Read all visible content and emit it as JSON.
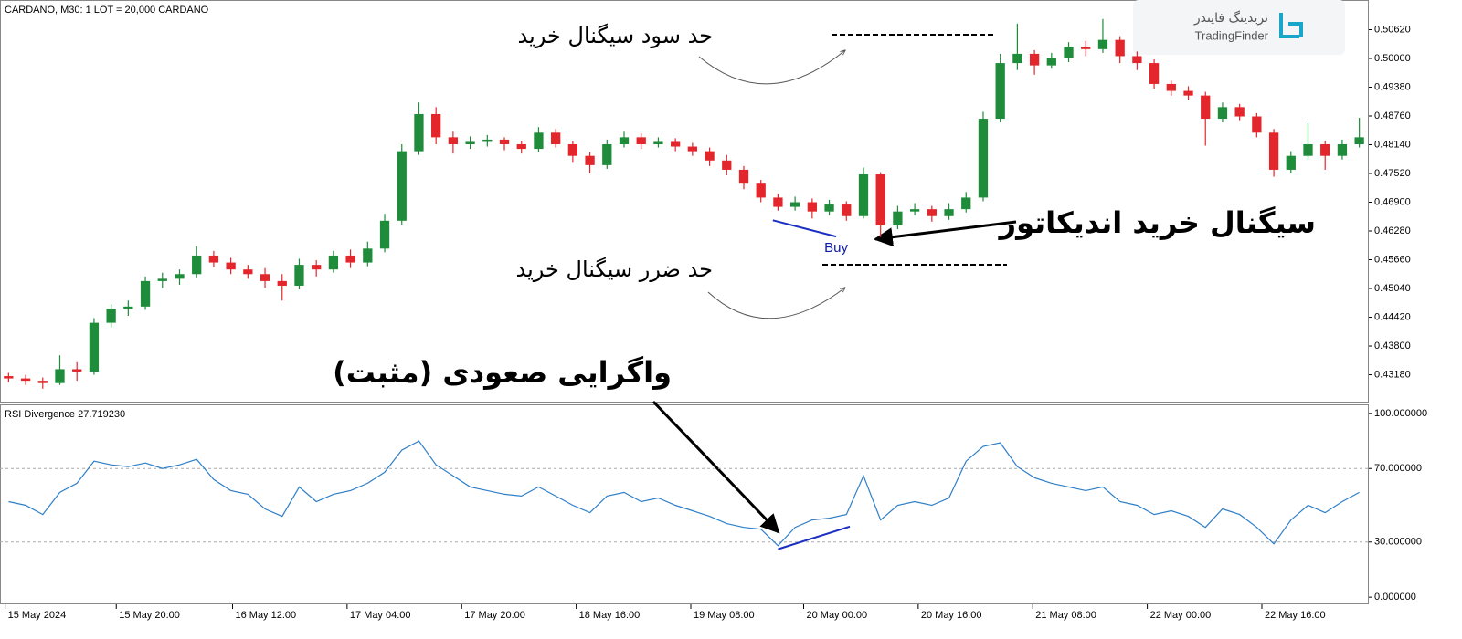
{
  "header": {
    "symbol": "CARDANO, M30:  1 LOT = 20,000 CARDANO"
  },
  "logo": {
    "name_fa": "تریدینگ فایندر",
    "name_en": "TradingFinder"
  },
  "annotations": {
    "take_profit": "حد سود سیگنال خرید",
    "stop_loss": "حد ضرر سیگنال خرید",
    "buy_signal": "سیگنال خرید اندیکاتور",
    "divergence": "واگرایی صعودی (مثبت)"
  },
  "chart_data": [
    {
      "type": "candlestick",
      "bull_color": "#1e8c3a",
      "bear_color": "#e3262c",
      "signal_label": "Buy",
      "signal_color": "#0a1aa8",
      "xlim": [
        -0.5,
        79.5
      ],
      "ylim": [
        0.426,
        0.5122
      ],
      "yticks": [
        {
          "value": 0.5062,
          "label": "0.50620"
        },
        {
          "value": 0.5,
          "label": "0.50000"
        },
        {
          "value": 0.4938,
          "label": "0.49380"
        },
        {
          "value": 0.4876,
          "label": "0.48760"
        },
        {
          "value": 0.4814,
          "label": "0.48140"
        },
        {
          "value": 0.4752,
          "label": "0.47520"
        },
        {
          "value": 0.469,
          "label": "0.46900"
        },
        {
          "value": 0.4628,
          "label": "0.46280"
        },
        {
          "value": 0.4566,
          "label": "0.45660"
        },
        {
          "value": 0.4504,
          "label": "0.45040"
        },
        {
          "value": 0.4442,
          "label": "0.44420"
        },
        {
          "value": 0.438,
          "label": "0.43800"
        },
        {
          "value": 0.4318,
          "label": "0.43180"
        }
      ],
      "divergence_line": {
        "x": [
          44.7,
          48.4
        ],
        "values": [
          0.4651,
          0.4616
        ],
        "color": "#1a2fc0"
      },
      "ohlc": [
        [
          0.4315,
          0.4322,
          0.4302,
          0.431
        ],
        [
          0.431,
          0.4318,
          0.4296,
          0.4305
        ],
        [
          0.4305,
          0.4312,
          0.4288,
          0.43
        ],
        [
          0.43,
          0.436,
          0.4296,
          0.433
        ],
        [
          0.433,
          0.4345,
          0.4305,
          0.4325
        ],
        [
          0.4325,
          0.444,
          0.4318,
          0.443
        ],
        [
          0.443,
          0.447,
          0.442,
          0.446
        ],
        [
          0.446,
          0.4478,
          0.4445,
          0.4465
        ],
        [
          0.4465,
          0.453,
          0.4458,
          0.452
        ],
        [
          0.452,
          0.4538,
          0.4505,
          0.4525
        ],
        [
          0.4525,
          0.4545,
          0.4512,
          0.4535
        ],
        [
          0.4535,
          0.4595,
          0.4528,
          0.4575
        ],
        [
          0.4575,
          0.4585,
          0.455,
          0.456
        ],
        [
          0.456,
          0.457,
          0.4535,
          0.4545
        ],
        [
          0.4545,
          0.4555,
          0.4525,
          0.4535
        ],
        [
          0.4535,
          0.4548,
          0.4505,
          0.452
        ],
        [
          0.452,
          0.4535,
          0.4478,
          0.451
        ],
        [
          0.451,
          0.4568,
          0.4502,
          0.4555
        ],
        [
          0.4555,
          0.4565,
          0.453,
          0.4545
        ],
        [
          0.4545,
          0.4585,
          0.4538,
          0.4575
        ],
        [
          0.4575,
          0.4588,
          0.4548,
          0.456
        ],
        [
          0.456,
          0.4605,
          0.4552,
          0.459
        ],
        [
          0.459,
          0.4665,
          0.4582,
          0.465
        ],
        [
          0.465,
          0.4815,
          0.4642,
          0.48
        ],
        [
          0.48,
          0.4905,
          0.4792,
          0.488
        ],
        [
          0.488,
          0.4895,
          0.4815,
          0.483
        ],
        [
          0.483,
          0.4842,
          0.4795,
          0.4815
        ],
        [
          0.4815,
          0.4832,
          0.4805,
          0.482
        ],
        [
          0.482,
          0.4835,
          0.481,
          0.4825
        ],
        [
          0.4825,
          0.483,
          0.4802,
          0.4815
        ],
        [
          0.4815,
          0.4822,
          0.4795,
          0.4805
        ],
        [
          0.4805,
          0.4852,
          0.4798,
          0.484
        ],
        [
          0.484,
          0.4848,
          0.4808,
          0.4815
        ],
        [
          0.4815,
          0.4822,
          0.4775,
          0.479
        ],
        [
          0.479,
          0.4798,
          0.4752,
          0.477
        ],
        [
          0.477,
          0.4825,
          0.4762,
          0.4815
        ],
        [
          0.4815,
          0.4842,
          0.4808,
          0.483
        ],
        [
          0.483,
          0.4838,
          0.4805,
          0.4815
        ],
        [
          0.4815,
          0.483,
          0.4808,
          0.482
        ],
        [
          0.482,
          0.4828,
          0.48,
          0.481
        ],
        [
          0.481,
          0.4818,
          0.479,
          0.48
        ],
        [
          0.48,
          0.4808,
          0.4768,
          0.478
        ],
        [
          0.478,
          0.4792,
          0.4748,
          0.476
        ],
        [
          0.476,
          0.4768,
          0.4718,
          0.473
        ],
        [
          0.473,
          0.4738,
          0.469,
          0.47
        ],
        [
          0.47,
          0.4708,
          0.4672,
          0.468
        ],
        [
          0.468,
          0.4702,
          0.4672,
          0.469
        ],
        [
          0.469,
          0.4698,
          0.4655,
          0.467
        ],
        [
          0.467,
          0.4695,
          0.4662,
          0.4685
        ],
        [
          0.4685,
          0.4692,
          0.465,
          0.466
        ],
        [
          0.466,
          0.4765,
          0.4655,
          0.475
        ],
        [
          0.475,
          0.4755,
          0.4615,
          0.464
        ],
        [
          0.464,
          0.4682,
          0.4632,
          0.467
        ],
        [
          0.467,
          0.4688,
          0.4662,
          0.4675
        ],
        [
          0.4675,
          0.4682,
          0.4648,
          0.466
        ],
        [
          0.466,
          0.4688,
          0.4652,
          0.4675
        ],
        [
          0.4675,
          0.4712,
          0.4668,
          0.47
        ],
        [
          0.47,
          0.4885,
          0.4692,
          0.487
        ],
        [
          0.487,
          0.501,
          0.4862,
          0.499
        ],
        [
          0.499,
          0.5075,
          0.4975,
          0.501
        ],
        [
          0.501,
          0.5018,
          0.4965,
          0.4985
        ],
        [
          0.4985,
          0.5012,
          0.4978,
          0.5
        ],
        [
          0.5,
          0.5035,
          0.4992,
          0.5025
        ],
        [
          0.5025,
          0.5038,
          0.5005,
          0.502
        ],
        [
          0.502,
          0.5085,
          0.5012,
          0.504
        ],
        [
          0.504,
          0.5048,
          0.499,
          0.5005
        ],
        [
          0.5005,
          0.5015,
          0.4975,
          0.499
        ],
        [
          0.499,
          0.4998,
          0.4935,
          0.4945
        ],
        [
          0.4945,
          0.4952,
          0.492,
          0.493
        ],
        [
          0.493,
          0.494,
          0.491,
          0.492
        ],
        [
          0.492,
          0.4928,
          0.4812,
          0.487
        ],
        [
          0.487,
          0.4905,
          0.4862,
          0.4895
        ],
        [
          0.4895,
          0.4902,
          0.4865,
          0.4875
        ],
        [
          0.4875,
          0.4882,
          0.483,
          0.484
        ],
        [
          0.484,
          0.4848,
          0.4745,
          0.476
        ],
        [
          0.476,
          0.48,
          0.4752,
          0.479
        ],
        [
          0.479,
          0.486,
          0.4782,
          0.4815
        ],
        [
          0.4815,
          0.4822,
          0.476,
          0.479
        ],
        [
          0.479,
          0.4825,
          0.4782,
          0.4815
        ],
        [
          0.4815,
          0.4872,
          0.4808,
          0.483
        ]
      ]
    },
    {
      "type": "line",
      "title": "RSI Divergence 27.719230",
      "color": "#2f7fc8",
      "xlim": [
        -0.5,
        79.5
      ],
      "ylim": [
        -3.4,
        104.4
      ],
      "yticks": [
        {
          "value": 100,
          "label": "100.000000"
        },
        {
          "value": 70,
          "label": "70.000000"
        },
        {
          "value": 30,
          "label": "30.000000"
        },
        {
          "value": 0,
          "label": "0.000000"
        }
      ],
      "levels": [
        70,
        30
      ],
      "divergence_line": {
        "x": [
          45,
          49.2
        ],
        "values": [
          26.1,
          38.4
        ],
        "color": "#1a2fc0"
      },
      "xticks": [
        {
          "value": -0.2,
          "label": "15 May 2024"
        },
        {
          "value": 6.3,
          "label": "15 May 20:00"
        },
        {
          "value": 13.1,
          "label": "16 May 12:00"
        },
        {
          "value": 19.8,
          "label": "17 May 04:00"
        },
        {
          "value": 26.5,
          "label": "17 May 20:00"
        },
        {
          "value": 33.2,
          "label": "18 May 16:00"
        },
        {
          "value": 39.9,
          "label": "19 May 08:00"
        },
        {
          "value": 46.5,
          "label": "20 May 00:00"
        },
        {
          "value": 53.2,
          "label": "20 May 16:00"
        },
        {
          "value": 59.9,
          "label": "21 May 08:00"
        },
        {
          "value": 66.6,
          "label": "22 May 00:00"
        },
        {
          "value": 73.3,
          "label": "22 May 16:00"
        }
      ],
      "values": [
        52,
        50,
        45,
        57,
        62,
        74,
        72,
        71,
        73,
        70,
        72,
        75,
        64,
        58,
        56,
        48,
        44,
        60,
        52,
        56,
        58,
        62,
        68,
        80,
        85,
        72,
        66,
        60,
        58,
        56,
        55,
        60,
        55,
        50,
        46,
        55,
        57,
        52,
        54,
        50,
        47,
        44,
        40,
        38,
        37,
        28,
        38,
        42,
        43,
        45,
        66,
        42,
        50,
        52,
        50,
        54,
        74,
        82,
        84,
        71,
        65,
        62,
        60,
        58,
        60,
        52,
        50,
        45,
        47,
        44,
        38,
        48,
        45,
        38,
        29,
        42,
        50,
        46,
        52,
        57
      ]
    }
  ]
}
